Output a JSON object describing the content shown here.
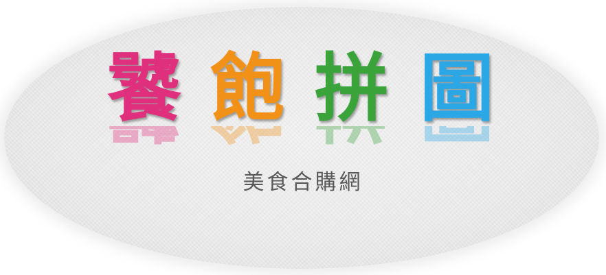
{
  "logo": {
    "title_chars": [
      {
        "text": "饕",
        "color": "#e0307d"
      },
      {
        "text": "飽",
        "color": "#f29118"
      },
      {
        "text": "拼",
        "color": "#3aa33a"
      },
      {
        "text": "圖",
        "color": "#2ba7e6"
      }
    ],
    "subtitle": "美食合購網"
  }
}
